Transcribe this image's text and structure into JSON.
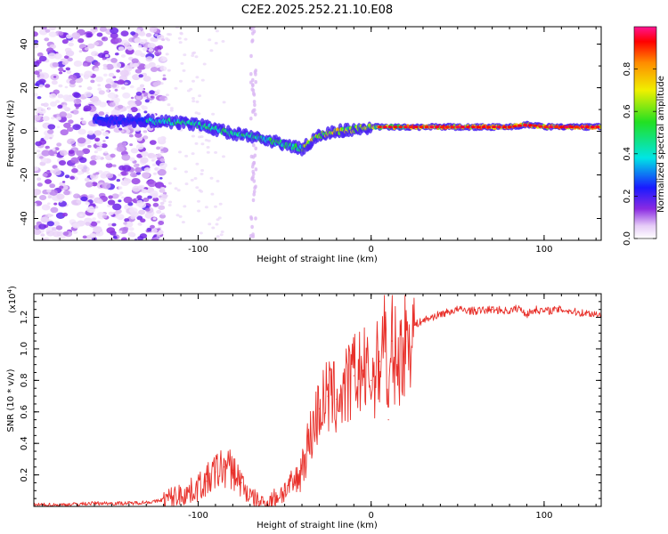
{
  "chart_data": [
    {
      "type": "heatmap",
      "title": "C2E2.2025.252.21.10.E08",
      "xlabel": "Height of straight line (km)",
      "ylabel": "Frequency (Hz)",
      "xlim": [
        -195,
        133
      ],
      "ylim": [
        -50,
        48
      ],
      "xticks": [
        -100,
        0,
        100
      ],
      "xtick_labels": [
        "-100",
        "0",
        "100"
      ],
      "yticks": [
        -40,
        -20,
        0,
        20,
        40
      ],
      "ytick_labels": [
        "-40",
        "-20",
        "0",
        "20",
        "40"
      ],
      "colorbar": {
        "label": "Normalized spectral amplitude",
        "range": [
          0,
          1
        ],
        "ticks": [
          0.0,
          0.2,
          0.4,
          0.6,
          0.8
        ],
        "tick_labels": [
          "0.0",
          "0.2",
          "0.4",
          "0.6",
          "0.8"
        ]
      },
      "signal_trace": {
        "height_km": [
          -150,
          -130,
          -110,
          -100,
          -90,
          -80,
          -70,
          -60,
          -50,
          -40,
          -35,
          -30,
          -20,
          -10,
          0,
          10,
          20,
          40,
          60,
          80,
          90,
          100,
          133
        ],
        "frequency_hz": [
          5,
          5,
          4,
          3,
          1,
          -1,
          -2,
          -4,
          -6,
          -8,
          -5,
          -2,
          0,
          1,
          2,
          2,
          2,
          2,
          2,
          2,
          3,
          2,
          2
        ]
      },
      "noise_region_km": [
        -195,
        -125
      ],
      "noise_stripe_km": -68
    },
    {
      "type": "line",
      "xlabel": "Height of straight line (km)",
      "ylabel": "SNR (10 * v/v)",
      "y_multiplier_label": "(x10",
      "y_multiplier_exponent": "4",
      "xlim": [
        -195,
        133
      ],
      "ylim": [
        0,
        1.35
      ],
      "xticks": [
        -100,
        0,
        100
      ],
      "xtick_labels": [
        "-100",
        "0",
        "100"
      ],
      "yticks": [
        0.2,
        0.4,
        0.6,
        0.8,
        1.0,
        1.2
      ],
      "ytick_labels": [
        "0.2",
        "0.4",
        "0.6",
        "0.8",
        "1.0",
        "1.2"
      ],
      "series": [
        {
          "name": "SNR",
          "color": "#e8302a",
          "x": [
            -195,
            -180,
            -160,
            -140,
            -125,
            -115,
            -105,
            -95,
            -90,
            -85,
            -80,
            -75,
            -70,
            -65,
            -60,
            -55,
            -50,
            -45,
            -42,
            -40,
            -35,
            -30,
            -25,
            -20,
            -15,
            -10,
            -5,
            0,
            5,
            8,
            10,
            12,
            15,
            20,
            25,
            30,
            40,
            50,
            60,
            70,
            80,
            85,
            90,
            95,
            100,
            110,
            120,
            133
          ],
          "y": [
            0.01,
            0.01,
            0.02,
            0.02,
            0.03,
            0.06,
            0.09,
            0.16,
            0.22,
            0.25,
            0.23,
            0.15,
            0.06,
            0.03,
            0.02,
            0.06,
            0.1,
            0.14,
            0.18,
            0.26,
            0.45,
            0.62,
            0.7,
            0.68,
            0.74,
            0.83,
            0.86,
            0.8,
            0.92,
            1.2,
            0.55,
            1.05,
            0.9,
            1.05,
            1.15,
            1.18,
            1.22,
            1.25,
            1.24,
            1.25,
            1.24,
            1.26,
            1.22,
            1.25,
            1.24,
            1.25,
            1.23,
            1.22
          ]
        }
      ]
    }
  ]
}
